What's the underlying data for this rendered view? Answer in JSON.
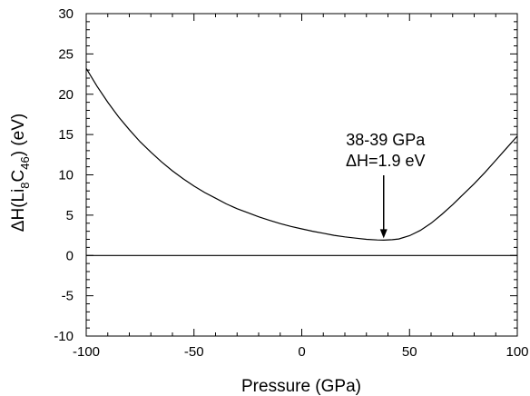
{
  "chart_data": {
    "type": "line",
    "title": "",
    "xlabel": "Pressure (GPa)",
    "ylabel": {
      "delta": "Δ",
      "main": "H(Li",
      "sub1": "8",
      "mid": "C",
      "sub2": "46",
      "end": ") (eV)"
    },
    "xlim": [
      -100,
      100
    ],
    "ylim": [
      -10,
      30
    ],
    "xticks": [
      -100,
      -50,
      0,
      50,
      100
    ],
    "yticks": [
      -10,
      -5,
      0,
      5,
      10,
      15,
      20,
      25,
      30
    ],
    "xtick_labels": [
      "-100",
      "-50",
      "0",
      "50",
      "100"
    ],
    "ytick_labels": [
      "-10",
      "-5",
      "0",
      "5",
      "10",
      "15",
      "20",
      "25",
      "30"
    ],
    "grid": false,
    "series": [
      {
        "x": [
          -100,
          -95,
          -90,
          -85,
          -80,
          -75,
          -70,
          -65,
          -60,
          -55,
          -50,
          -45,
          -40,
          -35,
          -30,
          -25,
          -20,
          -15,
          -10,
          -5,
          0,
          5,
          10,
          15,
          20,
          25,
          30,
          35,
          38,
          42,
          45,
          50,
          55,
          60,
          65,
          70,
          75,
          80,
          85,
          90,
          95,
          100
        ],
        "y": [
          23.2,
          21.0,
          19.0,
          17.2,
          15.6,
          14.1,
          12.8,
          11.6,
          10.5,
          9.5,
          8.6,
          7.8,
          7.1,
          6.4,
          5.8,
          5.3,
          4.8,
          4.35,
          3.95,
          3.6,
          3.3,
          3.0,
          2.75,
          2.5,
          2.3,
          2.15,
          2.0,
          1.92,
          1.9,
          1.95,
          2.05,
          2.45,
          3.1,
          4.0,
          5.1,
          6.3,
          7.6,
          8.9,
          10.3,
          11.8,
          13.3,
          14.8
        ]
      },
      {
        "x": [
          -100,
          100
        ],
        "y": [
          0,
          0
        ]
      }
    ],
    "annotations": [
      {
        "lines": [
          "38-39 GPa",
          "ΔH=1.9 eV"
        ],
        "arrow_to": [
          38,
          1.9
        ]
      }
    ]
  }
}
